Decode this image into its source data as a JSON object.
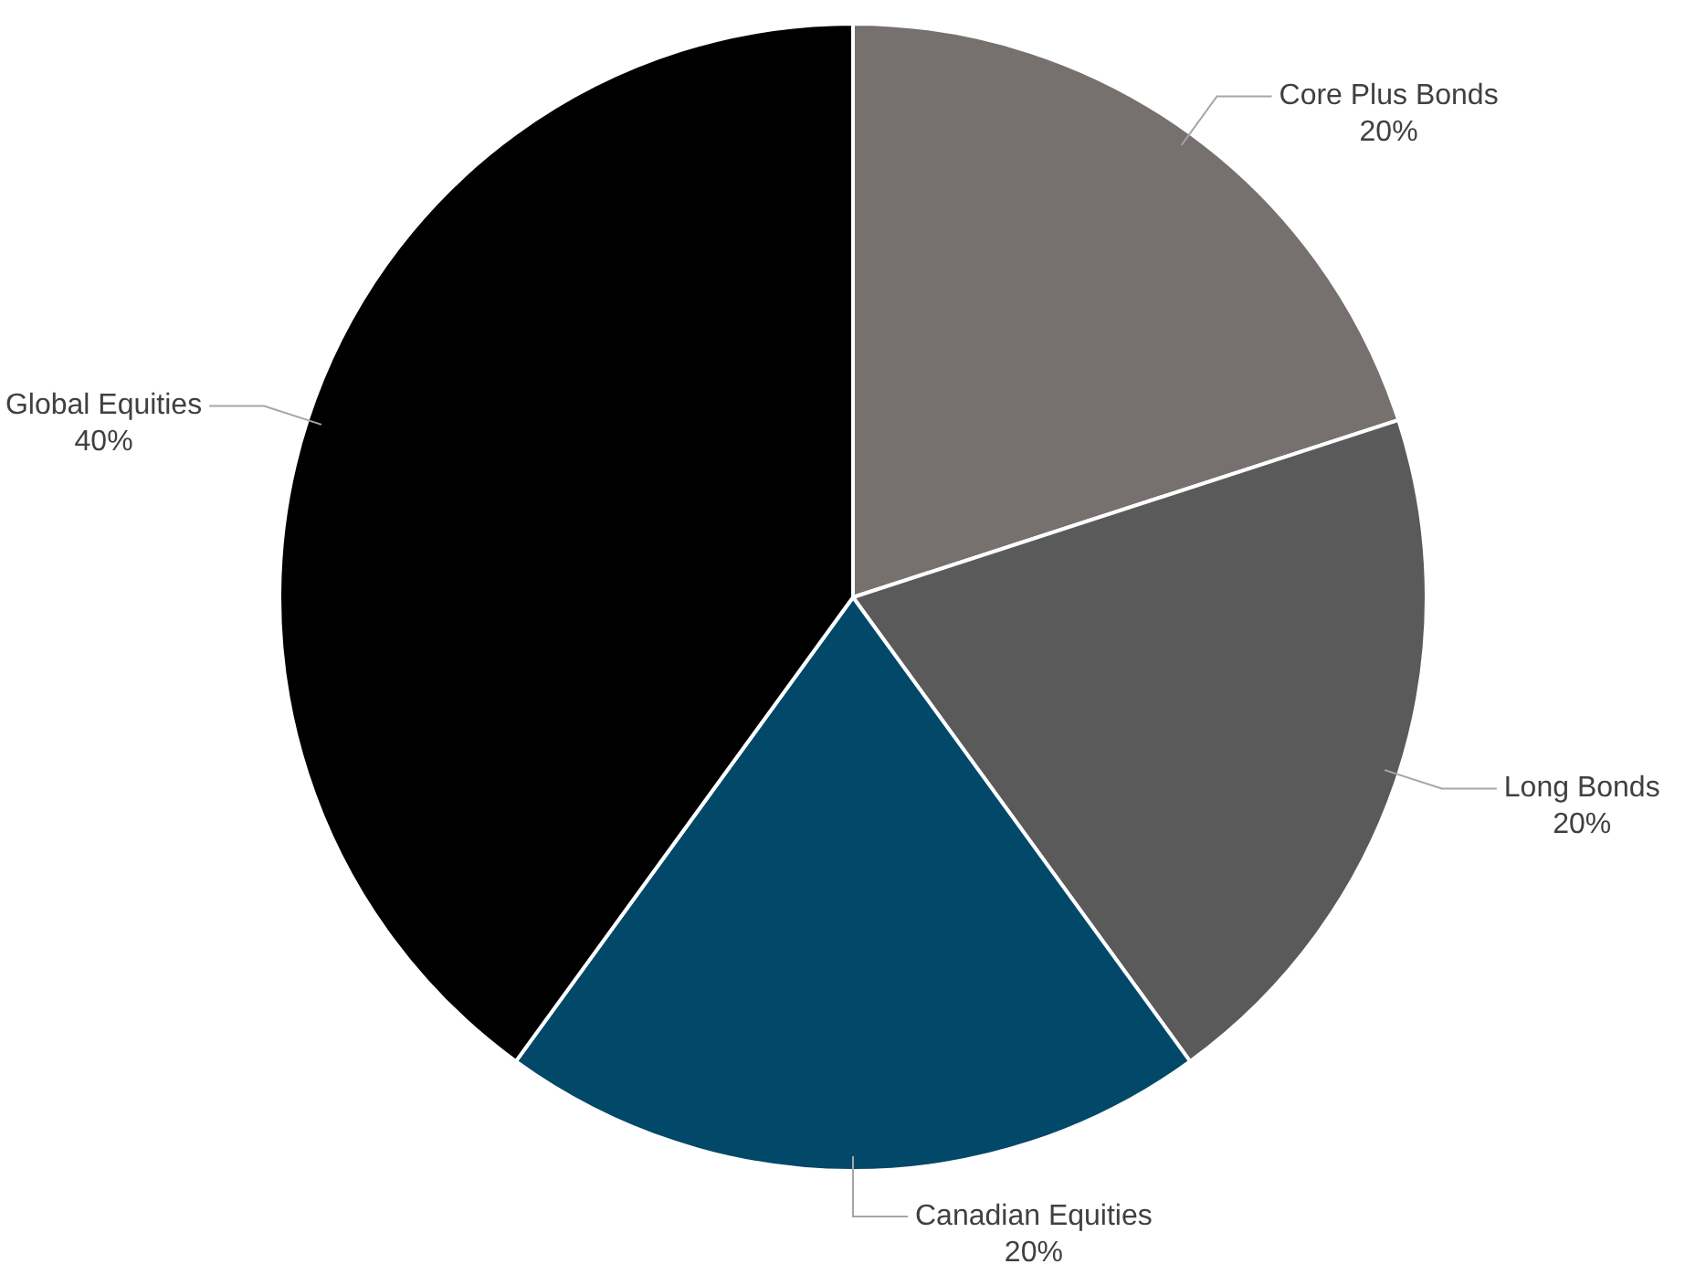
{
  "chart_data": {
    "type": "pie",
    "categories": [
      "Core Plus Bonds",
      "Long Bonds",
      "Canadian Equities",
      "Global Equities"
    ],
    "values": [
      20,
      20,
      20,
      40
    ],
    "colors": [
      "#76706e",
      "#5a5a5a",
      "#014869",
      "#000000"
    ],
    "value_labels": [
      "20%",
      "20%",
      "20%",
      "40%"
    ],
    "legend": false
  }
}
